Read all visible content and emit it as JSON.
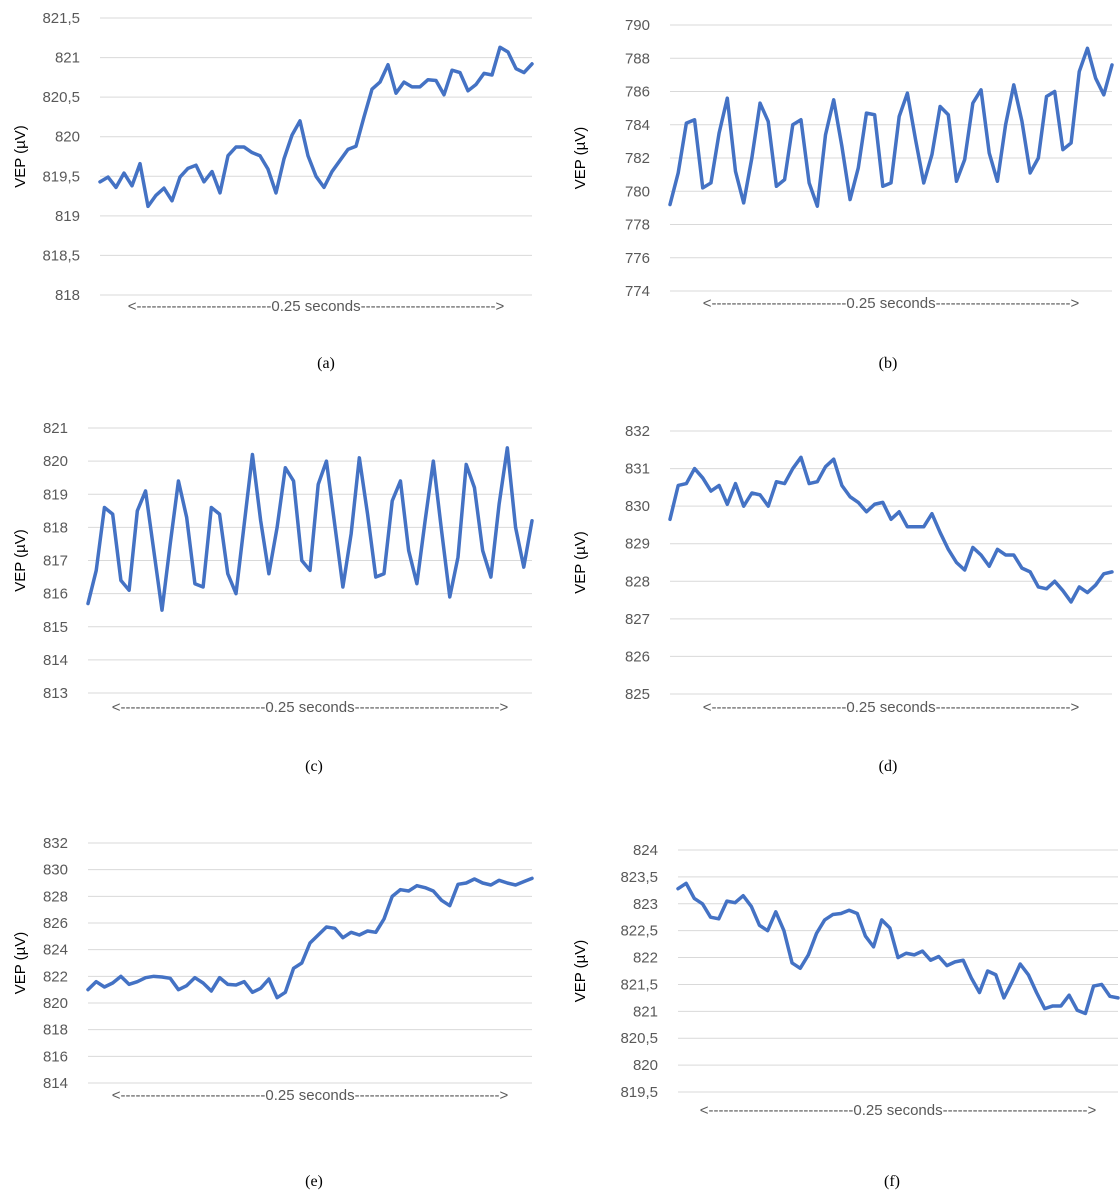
{
  "colors": {
    "series": "#4472C4",
    "grid": "#D9D9D9"
  },
  "panels": [
    {
      "label": "(a)",
      "chart_data": {
        "type": "line",
        "ylabel": "VEP (µV)",
        "xlabel": "<---------------------------0.25  seconds--------------------------->",
        "ylim": [
          818,
          821.5
        ],
        "yticks": [
          "818",
          "818,5",
          "819",
          "819,5",
          "820",
          "820,5",
          "821",
          "821,5"
        ],
        "grid": true,
        "values": [
          819.43,
          819.49,
          819.36,
          819.54,
          819.38,
          819.66,
          819.12,
          819.26,
          819.35,
          819.19,
          819.49,
          819.6,
          819.64,
          819.43,
          819.56,
          819.29,
          819.76,
          819.87,
          819.87,
          819.8,
          819.76,
          819.59,
          819.29,
          819.72,
          820.02,
          820.2,
          819.76,
          819.5,
          819.36,
          819.56,
          819.7,
          819.84,
          819.88,
          820.25,
          820.6,
          820.69,
          820.91,
          820.55,
          820.69,
          820.63,
          820.63,
          820.72,
          820.71,
          820.53,
          820.84,
          820.81,
          820.58,
          820.66,
          820.8,
          820.78,
          821.13,
          821.07,
          820.86,
          820.81,
          820.92
        ]
      }
    },
    {
      "label": "(b)",
      "chart_data": {
        "type": "line",
        "ylabel": "VEP (µV)",
        "xlabel": "<---------------------------0.25  seconds--------------------------->",
        "ylim": [
          774,
          790
        ],
        "yticks": [
          "774",
          "776",
          "778",
          "780",
          "782",
          "784",
          "786",
          "788",
          "790"
        ],
        "grid": true,
        "values": [
          779.2,
          781.1,
          784.1,
          784.3,
          780.2,
          780.5,
          783.5,
          785.6,
          781.2,
          779.3,
          782.0,
          785.3,
          784.2,
          780.3,
          780.7,
          784.0,
          784.3,
          780.5,
          779.1,
          783.4,
          785.5,
          782.7,
          779.5,
          781.4,
          784.7,
          784.6,
          780.3,
          780.5,
          784.5,
          785.9,
          783.1,
          780.5,
          782.2,
          785.1,
          784.6,
          780.6,
          781.9,
          785.3,
          786.1,
          782.3,
          780.6,
          784.0,
          786.4,
          784.2,
          781.1,
          782.0,
          785.7,
          786.0,
          782.5,
          782.9,
          787.2,
          788.6,
          786.8,
          785.8,
          787.6
        ]
      }
    },
    {
      "label": "(c)",
      "chart_data": {
        "type": "line",
        "ylabel": "VEP (µV)",
        "xlabel": "<-----------------------------0.25  seconds----------------------------->",
        "ylim": [
          813,
          821
        ],
        "yticks": [
          "813",
          "814",
          "815",
          "816",
          "817",
          "818",
          "819",
          "820",
          "821"
        ],
        "grid": true,
        "values": [
          815.7,
          816.7,
          818.6,
          818.4,
          816.4,
          816.1,
          818.5,
          819.1,
          817.3,
          815.5,
          817.5,
          819.4,
          818.3,
          816.3,
          816.2,
          818.6,
          818.4,
          816.6,
          816.0,
          818.1,
          820.2,
          818.2,
          816.6,
          818.0,
          819.8,
          819.4,
          817.0,
          816.7,
          819.3,
          820.0,
          818.1,
          816.2,
          817.8,
          820.1,
          818.4,
          816.5,
          816.6,
          818.8,
          819.4,
          817.3,
          816.3,
          818.2,
          820.0,
          817.9,
          815.9,
          817.1,
          819.9,
          819.2,
          817.3,
          816.5,
          818.7,
          820.4,
          818.0,
          816.8,
          818.2
        ]
      }
    },
    {
      "label": "(d)",
      "chart_data": {
        "type": "line",
        "ylabel": "VEP (µV)",
        "xlabel": "<---------------------------0.25  seconds--------------------------->",
        "ylim": [
          825,
          832
        ],
        "yticks": [
          "825",
          "826",
          "827",
          "828",
          "829",
          "830",
          "831",
          "832"
        ],
        "grid": true,
        "values": [
          829.65,
          830.55,
          830.6,
          831.0,
          830.75,
          830.4,
          830.55,
          830.05,
          830.6,
          830.0,
          830.35,
          830.3,
          830.0,
          830.65,
          830.6,
          831.0,
          831.3,
          830.6,
          830.65,
          831.05,
          831.25,
          830.55,
          830.25,
          830.1,
          829.85,
          830.05,
          830.1,
          829.65,
          829.85,
          829.45,
          829.45,
          829.45,
          829.8,
          829.3,
          828.85,
          828.5,
          828.3,
          828.9,
          828.7,
          828.4,
          828.85,
          828.7,
          828.7,
          828.35,
          828.25,
          827.85,
          827.8,
          828.0,
          827.75,
          827.45,
          827.85,
          827.7,
          827.9,
          828.2,
          828.25
        ]
      }
    },
    {
      "label": "(e)",
      "chart_data": {
        "type": "line",
        "ylabel": "VEP (µV)",
        "xlabel": "<-----------------------------0.25  seconds----------------------------->",
        "ylim": [
          814,
          832
        ],
        "yticks": [
          "814",
          "816",
          "818",
          "820",
          "822",
          "824",
          "826",
          "828",
          "830",
          "832"
        ],
        "grid": true,
        "values": [
          821.0,
          821.6,
          821.2,
          821.5,
          822.0,
          821.4,
          821.6,
          821.9,
          822.0,
          821.95,
          821.85,
          821.0,
          821.3,
          821.9,
          821.5,
          820.9,
          821.9,
          821.4,
          821.35,
          821.6,
          820.8,
          821.1,
          821.8,
          820.4,
          820.8,
          822.6,
          823.0,
          824.5,
          825.1,
          825.7,
          825.6,
          824.9,
          825.3,
          825.1,
          825.4,
          825.3,
          826.3,
          828.0,
          828.5,
          828.4,
          828.8,
          828.65,
          828.4,
          827.7,
          827.3,
          828.9,
          829.0,
          829.3,
          829.0,
          828.85,
          829.2,
          829.0,
          828.85,
          829.1,
          829.35
        ]
      }
    },
    {
      "label": "(f)",
      "chart_data": {
        "type": "line",
        "ylabel": "VEP (µV)",
        "xlabel": "<-----------------------------0.25  seconds----------------------------->",
        "ylim": [
          819.5,
          824
        ],
        "yticks": [
          "819,5",
          "820",
          "820,5",
          "821",
          "821,5",
          "822",
          "822,5",
          "823",
          "823,5",
          "824"
        ],
        "grid": true,
        "values": [
          823.28,
          823.38,
          823.1,
          823.0,
          822.75,
          822.72,
          823.05,
          823.02,
          823.15,
          822.95,
          822.6,
          822.5,
          822.85,
          822.5,
          821.9,
          821.8,
          822.05,
          822.45,
          822.7,
          822.8,
          822.82,
          822.88,
          822.82,
          822.4,
          822.2,
          822.7,
          822.55,
          822.0,
          822.08,
          822.05,
          822.12,
          821.95,
          822.02,
          821.85,
          821.92,
          821.95,
          821.62,
          821.35,
          821.75,
          821.68,
          821.25,
          821.55,
          821.88,
          821.68,
          821.35,
          821.05,
          821.1,
          821.1,
          821.3,
          821.02,
          820.96,
          821.47,
          821.5,
          821.28,
          821.25
        ]
      }
    }
  ]
}
